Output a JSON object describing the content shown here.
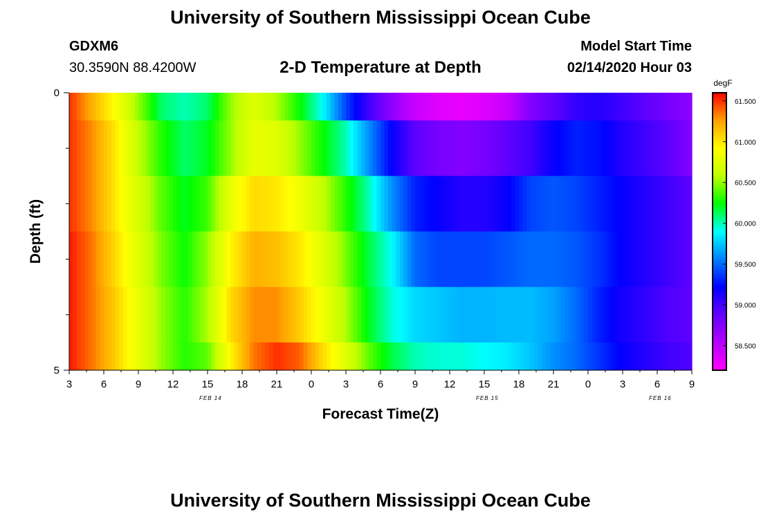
{
  "page": {
    "title_top": "University of Southern Mississippi Ocean Cube",
    "title_bottom": "University of Southern Mississippi Ocean Cube",
    "station_id": "GDXM6",
    "location": "30.3590N 88.4200W",
    "plot_title": "2-D Temperature at Depth",
    "model_start_label": "Model Start Time",
    "model_start_value": "02/14/2020 Hour 03"
  },
  "chart_data": {
    "type": "heatmap",
    "title": "2-D Temperature at Depth",
    "xlabel": "Forecast Time(Z)",
    "ylabel": "Depth (ft)",
    "x_tick_labels": [
      "3",
      "6",
      "9",
      "12",
      "15",
      "18",
      "21",
      "0",
      "3",
      "6",
      "9",
      "12",
      "15",
      "18",
      "21",
      "0",
      "3",
      "6",
      "9"
    ],
    "date_labels": [
      {
        "text": "FEB 14",
        "at_tick": 4
      },
      {
        "text": "FEB 15",
        "at_tick": 12
      },
      {
        "text": "FEB 16",
        "at_tick": 17
      }
    ],
    "x_hours_since_start": [
      0,
      54
    ],
    "y_ticks": [
      "0",
      "5"
    ],
    "ylim": [
      0,
      5
    ],
    "colorbar": {
      "unit": "degF",
      "min": 58.2,
      "max": 61.6,
      "tick_values": [
        61.5,
        61.0,
        60.5,
        60.0,
        59.5,
        59.0,
        58.5
      ],
      "tick_labels": [
        "61.500",
        "61.000",
        "60.500",
        "60.000",
        "59.500",
        "59.000",
        "58.500"
      ],
      "colors": [
        "#ff00ff",
        "#b400ff",
        "#6400ff",
        "#0000ff",
        "#0080ff",
        "#00ffff",
        "#00ff00",
        "#c0ff00",
        "#ffff00",
        "#ffa000",
        "#ff0000"
      ]
    },
    "layers": [
      {
        "depth_range": [
          0,
          0.5
        ],
        "temps_by_hour": [
          61.5,
          61.2,
          60.9,
          60.5,
          60.1,
          60.0,
          60.1,
          60.5,
          60.75,
          60.55,
          60.25,
          59.9,
          59.4,
          59.0,
          58.7,
          58.45,
          58.35,
          58.3,
          58.35,
          58.45,
          58.75,
          58.9,
          59.05,
          59.1,
          59.0,
          58.9,
          58.8,
          58.7
        ]
      },
      {
        "depth_range": [
          0.5,
          1.5
        ],
        "temps_by_hour": [
          61.5,
          61.3,
          61.0,
          60.6,
          60.3,
          60.1,
          60.2,
          60.5,
          60.8,
          60.75,
          60.5,
          60.25,
          60.0,
          59.6,
          59.2,
          58.9,
          58.8,
          58.75,
          58.8,
          58.9,
          59.0,
          59.2,
          59.3,
          59.25,
          59.1,
          59.0,
          58.9,
          58.75
        ]
      },
      {
        "depth_range": [
          1.5,
          2.5
        ],
        "temps_by_hour": [
          61.5,
          61.3,
          61.0,
          60.7,
          60.4,
          60.2,
          60.35,
          60.8,
          61.05,
          61.0,
          60.85,
          60.6,
          60.3,
          60.0,
          59.6,
          59.3,
          59.2,
          59.1,
          59.1,
          59.2,
          59.4,
          59.45,
          59.4,
          59.3,
          59.2,
          59.1,
          59.0,
          58.9
        ]
      },
      {
        "depth_range": [
          2.5,
          3.5
        ],
        "temps_by_hour": [
          61.55,
          61.35,
          61.05,
          60.75,
          60.45,
          60.25,
          60.5,
          60.95,
          61.2,
          61.15,
          61.0,
          60.75,
          60.45,
          60.15,
          59.9,
          59.5,
          59.4,
          59.4,
          59.4,
          59.45,
          59.5,
          59.5,
          59.45,
          59.35,
          59.2,
          59.1,
          59.0,
          58.9
        ]
      },
      {
        "depth_range": [
          3.5,
          4.5
        ],
        "temps_by_hour": [
          61.55,
          61.35,
          61.1,
          60.8,
          60.5,
          60.3,
          60.55,
          61.05,
          61.3,
          61.3,
          61.1,
          60.85,
          60.55,
          60.2,
          59.95,
          59.8,
          59.75,
          59.7,
          59.7,
          59.72,
          59.72,
          59.65,
          59.5,
          59.3,
          59.15,
          59.05,
          58.95,
          58.9
        ]
      },
      {
        "depth_range": [
          4.5,
          5.0
        ],
        "temps_by_hour": [
          61.55,
          61.35,
          61.1,
          60.8,
          60.5,
          60.3,
          60.4,
          60.95,
          61.35,
          61.5,
          61.4,
          61.05,
          60.75,
          60.4,
          60.15,
          60.0,
          59.95,
          59.95,
          59.9,
          59.85,
          59.75,
          59.6,
          59.5,
          59.35,
          59.2,
          59.1,
          59.0,
          58.95
        ]
      }
    ]
  }
}
